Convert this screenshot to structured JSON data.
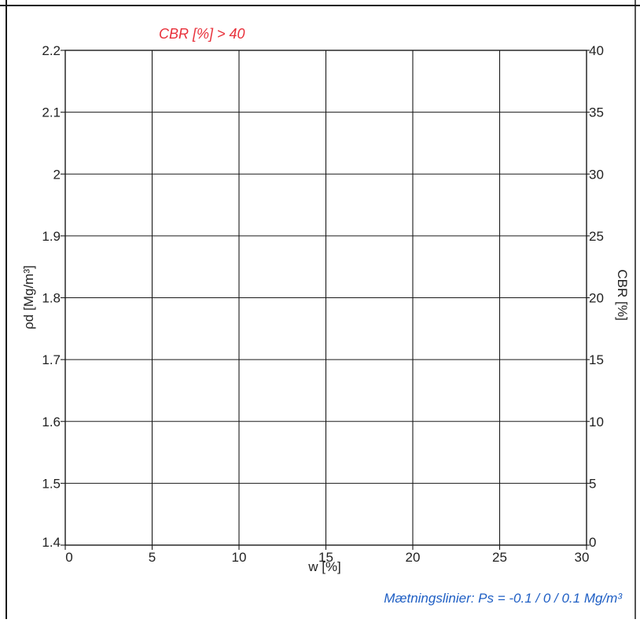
{
  "chart_data": {
    "type": "line",
    "annotation_top": "CBR [%] > 40",
    "annotation_bottom": "Mætningslinier: Ps = -0.1 / 0 / 0.1 Mg/m³",
    "xlabel": "w [%]",
    "ylabel": "ρd [Mg/m³]",
    "y2label": "CBR [%]",
    "xlim": [
      0,
      30
    ],
    "ylim": [
      1.4,
      2.2
    ],
    "y2lim": [
      0,
      40
    ],
    "xticks": [
      "0",
      "5",
      "10",
      "15",
      "20",
      "25",
      "30"
    ],
    "yticks": [
      "1.4",
      "1.5",
      "1.6",
      "1.7",
      "1.8",
      "1.9",
      "2",
      "2.1",
      "2.2"
    ],
    "y2ticks": [
      "0",
      "5",
      "10",
      "15",
      "20",
      "25",
      "30",
      "35",
      "40"
    ],
    "grid": true,
    "series": [],
    "colors": {
      "annotation_top": "#e8303a",
      "annotation_bottom": "#1f5fc4",
      "text": "#222222",
      "grid": "#1a1a1a"
    }
  }
}
